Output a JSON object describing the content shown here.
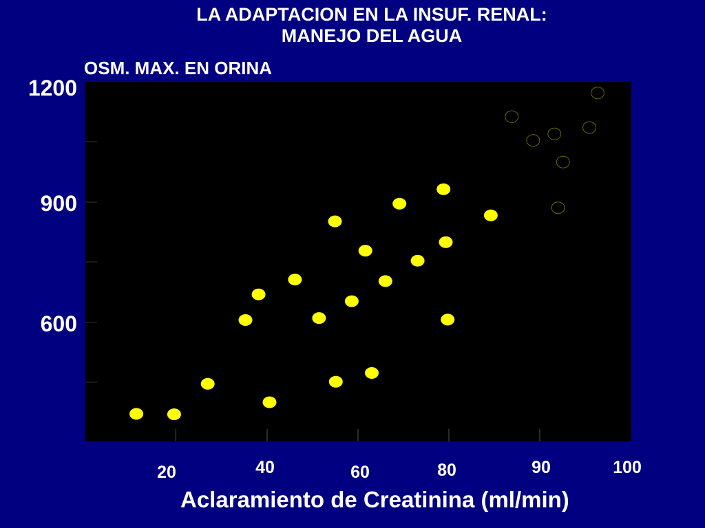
{
  "slide": {
    "title_line1": "LA ADAPTACION EN LA INSUF. RENAL:",
    "title_line2": "MANEJO DEL AGUA"
  },
  "chart_data": {
    "type": "scatter",
    "ylabel": "OSM. MAX. EN ORINA",
    "xlabel": "Aclaramiento de Creatinina (ml/min)",
    "yticks": [
      "600",
      "900",
      "1200"
    ],
    "xticks": [
      "20",
      "40",
      "60",
      "80",
      "90",
      "100"
    ],
    "grid": false,
    "colors": {
      "background": "#000080",
      "plot_bg": "#000000",
      "filled": "#ffff00",
      "open": "#000000",
      "text": "#ffffff"
    },
    "series": [
      {
        "style": "filled",
        "points": [
          [
            11.3,
            372
          ],
          [
            19.6,
            371
          ],
          [
            27.0,
            447
          ],
          [
            35.3,
            606
          ],
          [
            38.2,
            670
          ],
          [
            40.6,
            401
          ],
          [
            46.2,
            707
          ],
          [
            51.5,
            611
          ],
          [
            55.2,
            452
          ],
          [
            55.0,
            852
          ],
          [
            58.7,
            653
          ],
          [
            61.7,
            779
          ],
          [
            63.1,
            474
          ],
          [
            66.1,
            703
          ],
          [
            69.2,
            896
          ],
          [
            73.2,
            754
          ],
          [
            78.9,
            932
          ],
          [
            79.4,
            800
          ],
          [
            79.8,
            607
          ],
          [
            89.3,
            867
          ]
        ]
      },
      {
        "style": "open",
        "points": [
          [
            93.9,
            1113
          ],
          [
            98.6,
            1054
          ],
          [
            103.3,
            1070
          ],
          [
            105.2,
            1000
          ],
          [
            104.1,
            886
          ],
          [
            111.0,
            1086
          ],
          [
            112.8,
            1172
          ]
        ]
      }
    ]
  }
}
